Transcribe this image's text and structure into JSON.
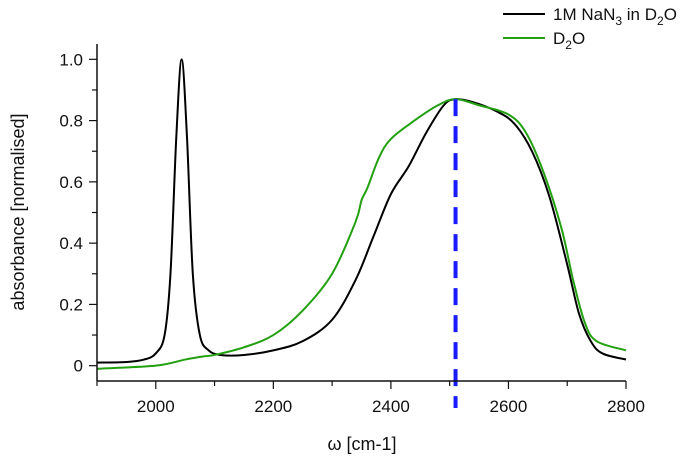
{
  "chart_data": {
    "type": "line",
    "title": "",
    "xlabel": "ω [cm-1]",
    "xlabel_base": "ω [cm",
    "xlabel_sup": "-1",
    "xlabel_close": "]",
    "ylabel": "absorbance [normalised]",
    "xlim": [
      1900,
      2800
    ],
    "ylim": [
      -0.05,
      1.05
    ],
    "xticks": [
      2000,
      2200,
      2400,
      2600,
      2800
    ],
    "xtick_labels": [
      "2000",
      "2200",
      "2400",
      "2600",
      "2800"
    ],
    "yticks": [
      0,
      0.2,
      0.4,
      0.6,
      0.8,
      1.0
    ],
    "ytick_labels": [
      "0",
      "0.2",
      "0.4",
      "0.6",
      "0.8",
      "1.0"
    ],
    "grid": false,
    "legend_position": "top-right",
    "series": [
      {
        "name": "1M NaN3 in D2O",
        "legend_parts": [
          "1M NaN",
          "3",
          " in D",
          "2",
          "O"
        ],
        "color": "#000000",
        "x": [
          1900,
          1950,
          1980,
          2000,
          2015,
          2025,
          2035,
          2044,
          2053,
          2063,
          2075,
          2090,
          2110,
          2150,
          2200,
          2250,
          2300,
          2340,
          2370,
          2400,
          2430,
          2460,
          2490,
          2510,
          2540,
          2580,
          2610,
          2640,
          2670,
          2700,
          2720,
          2740,
          2760,
          2800
        ],
        "y": [
          0.01,
          0.012,
          0.02,
          0.04,
          0.1,
          0.3,
          0.75,
          1.0,
          0.75,
          0.3,
          0.1,
          0.05,
          0.035,
          0.035,
          0.05,
          0.08,
          0.15,
          0.28,
          0.42,
          0.56,
          0.65,
          0.76,
          0.85,
          0.87,
          0.86,
          0.83,
          0.79,
          0.7,
          0.55,
          0.33,
          0.17,
          0.08,
          0.04,
          0.02
        ]
      },
      {
        "name": "D2O",
        "legend_parts": [
          "D",
          "2",
          "O"
        ],
        "color": "#22a010",
        "x": [
          1900,
          2000,
          2050,
          2080,
          2100,
          2150,
          2200,
          2250,
          2300,
          2340,
          2350,
          2360,
          2380,
          2400,
          2440,
          2480,
          2510,
          2550,
          2600,
          2630,
          2660,
          2690,
          2710,
          2730,
          2750,
          2800
        ],
        "y": [
          -0.01,
          0.0,
          0.02,
          0.03,
          0.035,
          0.06,
          0.1,
          0.18,
          0.3,
          0.47,
          0.54,
          0.58,
          0.68,
          0.74,
          0.8,
          0.85,
          0.87,
          0.85,
          0.82,
          0.76,
          0.63,
          0.45,
          0.28,
          0.14,
          0.08,
          0.05
        ]
      }
    ],
    "annotations": [
      {
        "type": "vertical-dashed-line",
        "x": 2510,
        "color": "#1a1aff"
      }
    ]
  }
}
